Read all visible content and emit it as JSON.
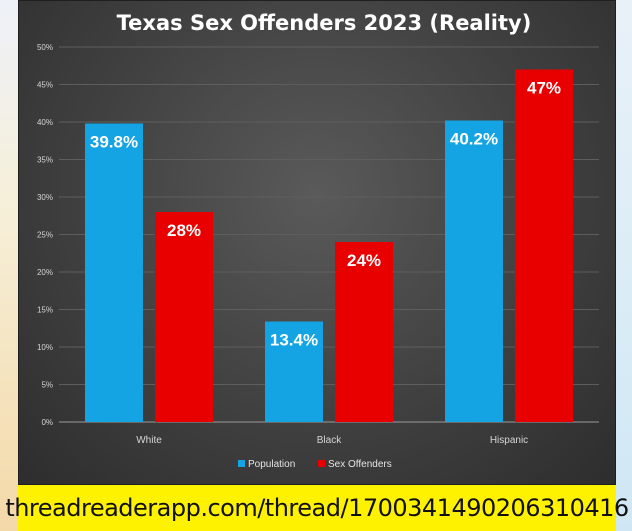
{
  "chart_data": {
    "type": "bar",
    "title": "Texas Sex Offenders 2023 (Reality)",
    "categories": [
      "White",
      "Black",
      "Hispanic"
    ],
    "series": [
      {
        "name": "Population",
        "values": [
          39.8,
          13.4,
          40.2
        ],
        "labels": [
          "39.8%",
          "13.4%",
          "40.2%"
        ],
        "color": "#14a4e4"
      },
      {
        "name": "Sex Offenders",
        "values": [
          28,
          24,
          47
        ],
        "labels": [
          "28%",
          "24%",
          "47%"
        ],
        "color": "#e80000"
      }
    ],
    "ylim": [
      0,
      50
    ],
    "yticks": [
      0,
      5,
      10,
      15,
      20,
      25,
      30,
      35,
      40,
      45,
      50
    ],
    "ytick_labels": [
      "0%",
      "5%",
      "10%",
      "15%",
      "20%",
      "25%",
      "30%",
      "35%",
      "40%",
      "45%",
      "50%"
    ],
    "grid": true,
    "legend_position": "bottom"
  },
  "footer": {
    "url": "threadreaderapp.com/thread/1700341490206310416"
  },
  "colors": {
    "panel_background": "#404040",
    "footer_background": "#fff200"
  }
}
